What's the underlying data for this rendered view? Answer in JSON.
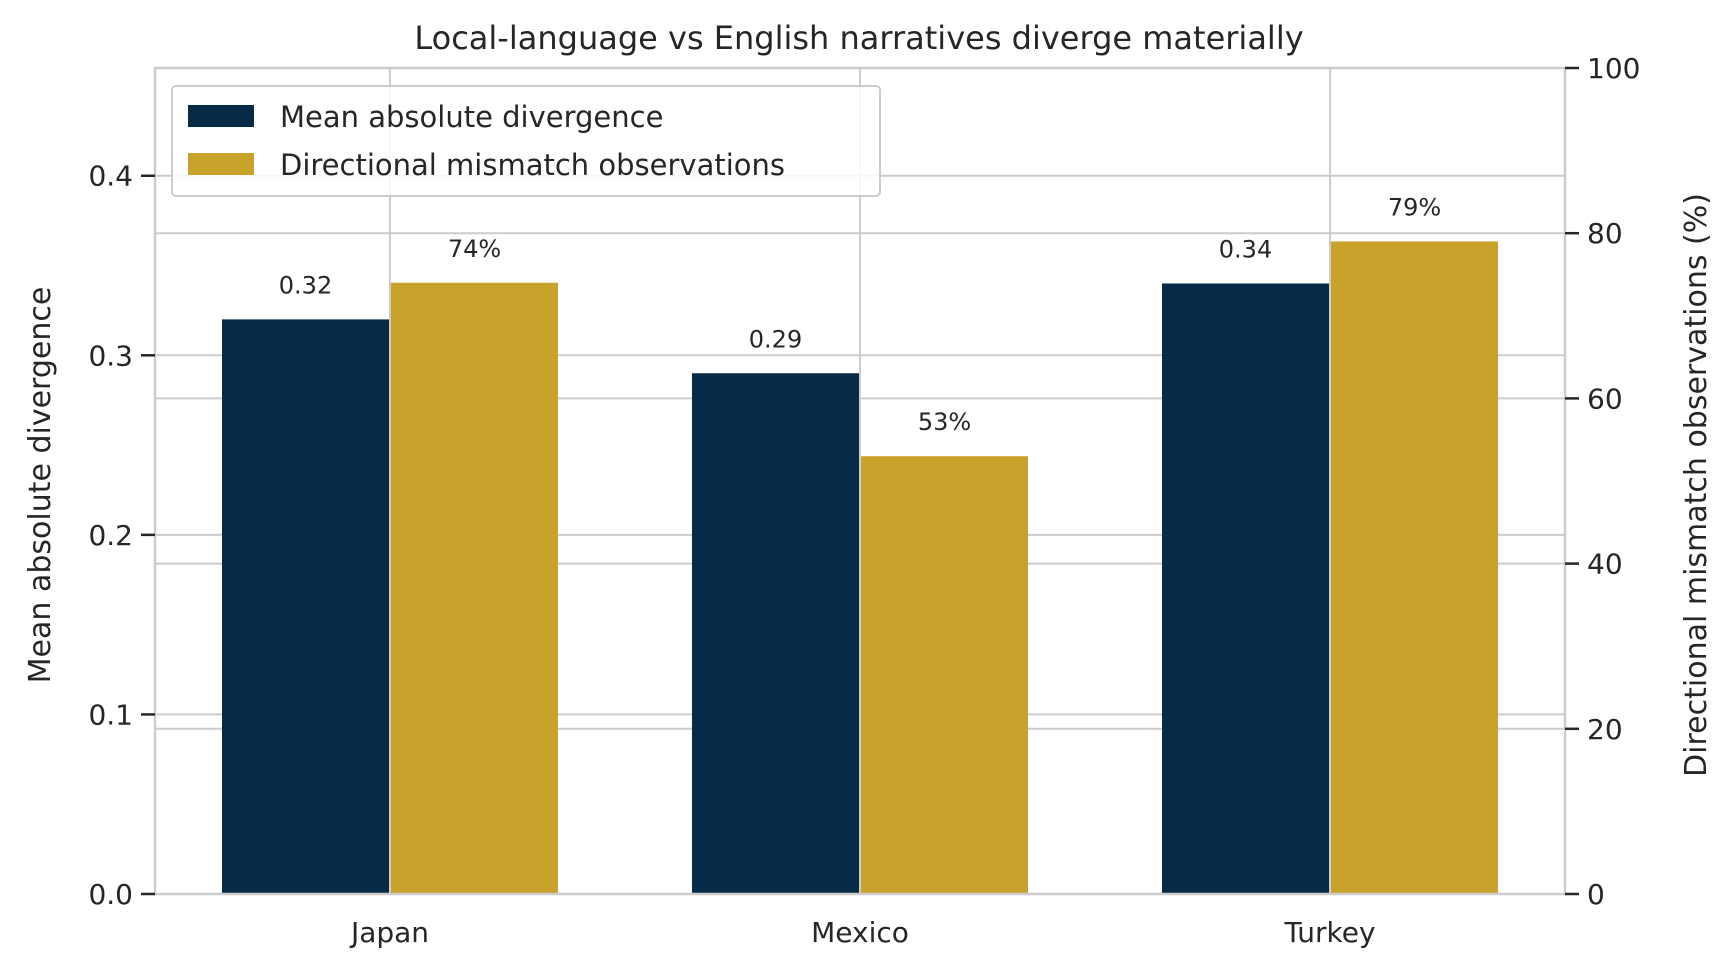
{
  "chart_data": {
    "type": "bar",
    "title": "Local-language vs English narratives diverge materially",
    "categories": [
      "Japan",
      "Mexico",
      "Turkey"
    ],
    "series": [
      {
        "name": "Mean absolute divergence",
        "axis": "left",
        "values": [
          0.32,
          0.29,
          0.34
        ],
        "labels": [
          "0.32",
          "0.29",
          "0.34"
        ],
        "color": "#072a47"
      },
      {
        "name": "Directional mismatch observations",
        "axis": "right",
        "values": [
          74,
          53,
          79
        ],
        "labels": [
          "74%",
          "53%",
          "79%"
        ],
        "color": "#c9a22b"
      }
    ],
    "ylabel_left": "Mean absolute divergence",
    "ylabel_right": "Directional mismatch observations (%)",
    "ylim_left": [
      0,
      0.46
    ],
    "ylim_right": [
      0,
      100
    ],
    "yticks_left": [
      "0.0",
      "0.1",
      "0.2",
      "0.3",
      "0.4"
    ],
    "yticks_right": [
      "0",
      "20",
      "40",
      "60",
      "80",
      "100"
    ],
    "grid": true,
    "legend_position": "top-left"
  }
}
